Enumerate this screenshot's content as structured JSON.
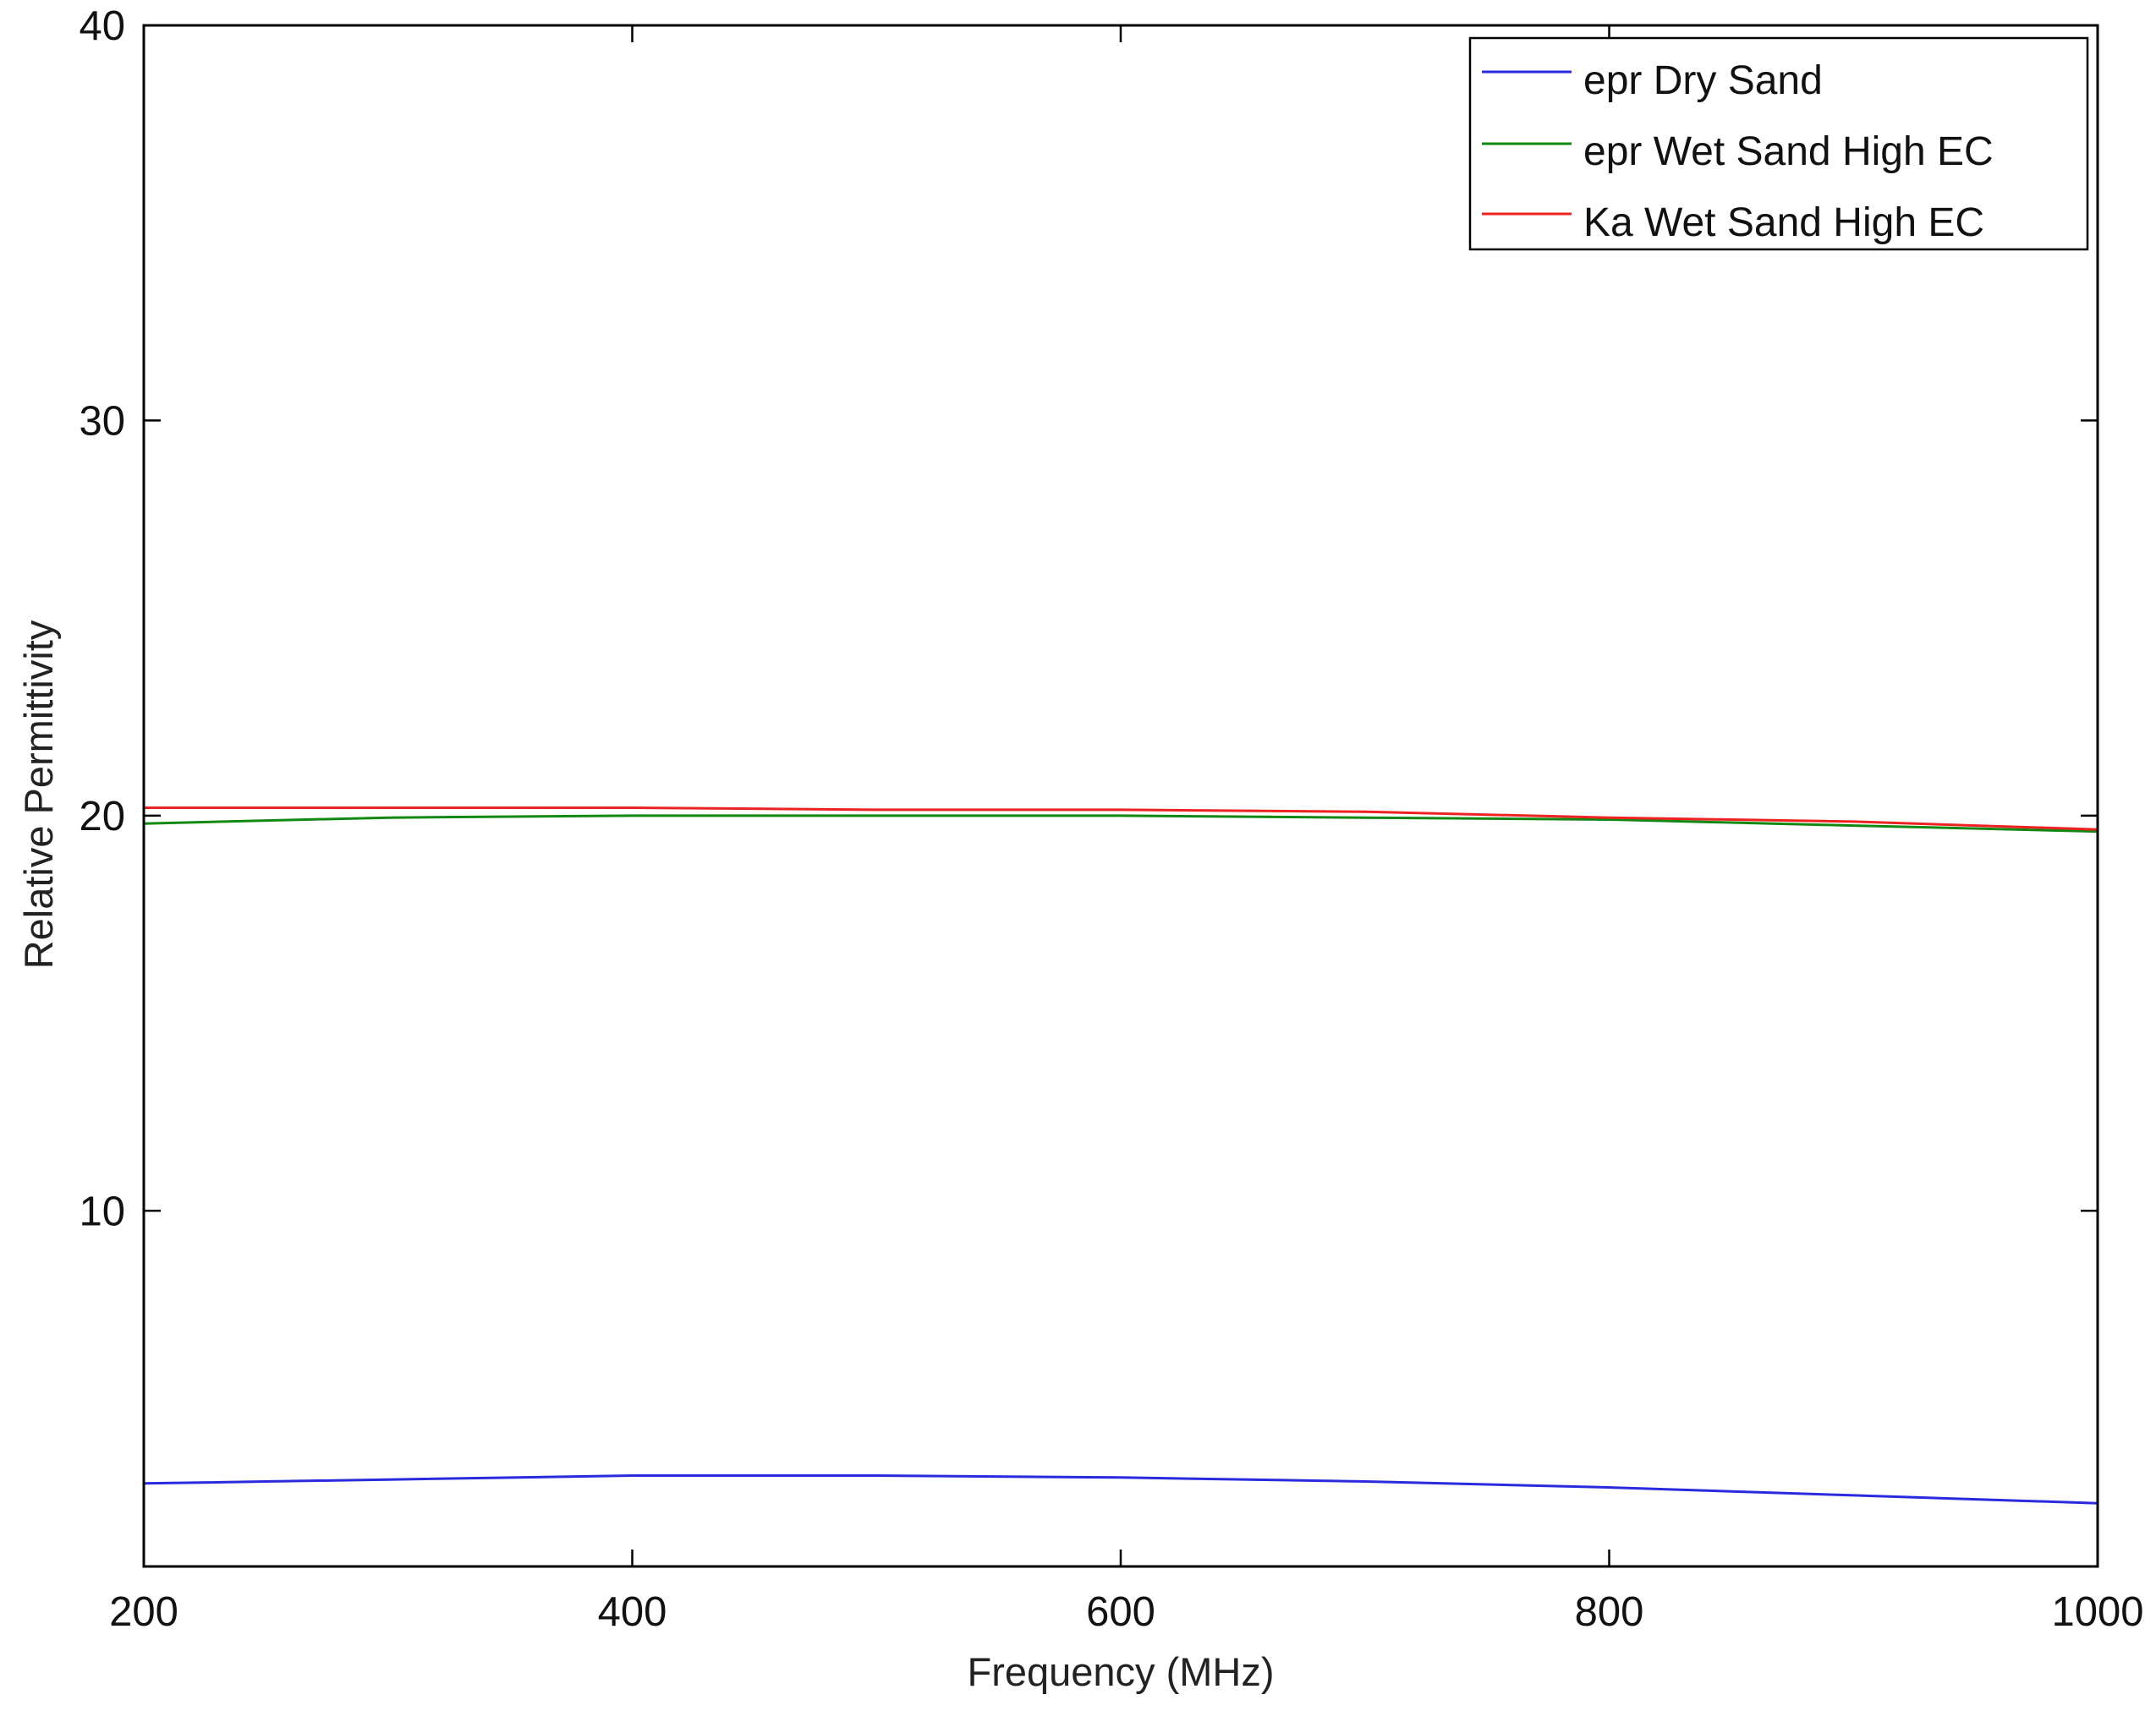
{
  "chart_data": {
    "type": "line",
    "title": "",
    "xlabel": "Frequency (MHz)",
    "ylabel": "Relative Permittivity",
    "xlim": [
      200,
      1000
    ],
    "ylim": [
      1,
      40
    ],
    "xticks": [
      200,
      400,
      600,
      800,
      1000
    ],
    "yticks": [
      10,
      20,
      30,
      40
    ],
    "xtick_labels": [
      "200",
      "400",
      "600",
      "800",
      "1000"
    ],
    "ytick_labels": [
      "10",
      "20",
      "30",
      "40"
    ],
    "grid": false,
    "legend_position": "top-right",
    "x": [
      200,
      300,
      400,
      500,
      600,
      700,
      800,
      900,
      1000
    ],
    "series": [
      {
        "name": "epr Dry Sand",
        "color": "#2a2adf",
        "values": [
          3.1,
          3.2,
          3.3,
          3.3,
          3.25,
          3.15,
          3.0,
          2.8,
          2.6
        ]
      },
      {
        "name": "epr Wet Sand High EC",
        "color": "#118811",
        "values": [
          19.8,
          19.95,
          20.0,
          20.0,
          20.0,
          19.95,
          19.9,
          19.75,
          19.6
        ]
      },
      {
        "name": "Ka Wet Sand High EC",
        "color": "#ee2222",
        "values": [
          20.2,
          20.2,
          20.2,
          20.15,
          20.15,
          20.1,
          19.95,
          19.85,
          19.65
        ]
      }
    ]
  }
}
